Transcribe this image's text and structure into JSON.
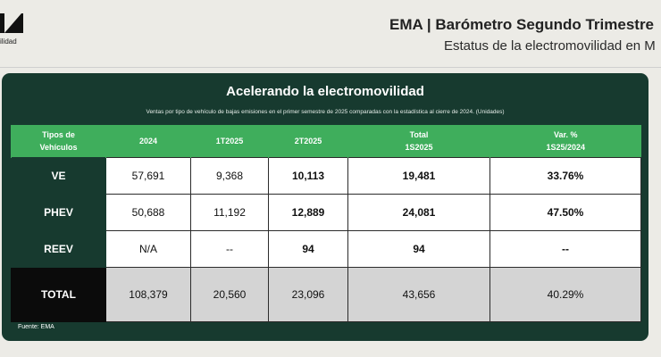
{
  "brand": {
    "logo_text": "ilidad"
  },
  "header": {
    "title": "EMA | Barómetro Segundo Trimestre",
    "subtitle": "Estatus de la electromovilidad en M"
  },
  "card": {
    "title": "Acelerando la electromovilidad",
    "subtitle": "Ventas por tipo de vehículo de bajas emisiones en el primer semestre de 2025 comparadas con la estadística al cierre de 2024. (Unidades)",
    "source": "Fuente: EMA"
  },
  "table": {
    "headers": [
      [
        "Tipos de",
        "Vehículos"
      ],
      [
        "2024"
      ],
      [
        "1T2025"
      ],
      [
        "2T2025"
      ],
      [
        "Total",
        "1S2025"
      ],
      [
        "Var. %",
        "1S25/2024"
      ]
    ],
    "rows": [
      {
        "label": "VE",
        "cells": [
          "57,691",
          "9,368",
          "10,113",
          "19,481",
          "33.76%"
        ]
      },
      {
        "label": "PHEV",
        "cells": [
          "50,688",
          "11,192",
          "12,889",
          "24,081",
          "47.50%"
        ]
      },
      {
        "label": "REEV",
        "cells": [
          "N/A",
          "--",
          "94",
          "94",
          "--"
        ]
      },
      {
        "label": "TOTAL",
        "cells": [
          "108,379",
          "20,560",
          "23,096",
          "43,656",
          "40.29%"
        ]
      }
    ]
  }
}
